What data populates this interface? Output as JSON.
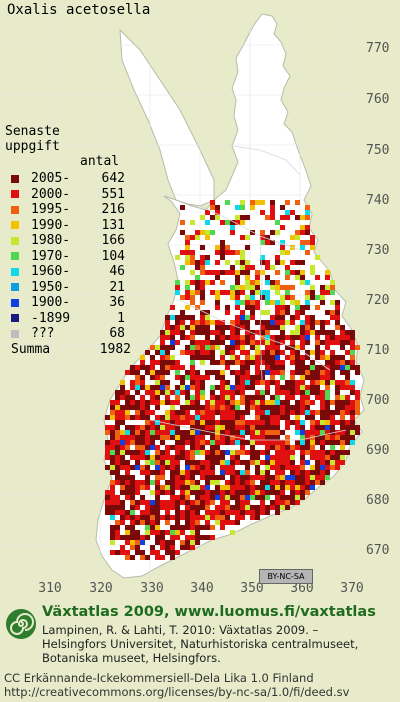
{
  "title": "Oxalis acetosella",
  "legend": {
    "heading_line1": "Senaste",
    "heading_line2": "uppgift",
    "count_header": "antal",
    "items": [
      {
        "label": "2005-",
        "count": "642",
        "color": "#7a0a0a"
      },
      {
        "label": "2000-",
        "count": "551",
        "color": "#e01010"
      },
      {
        "label": "1995-",
        "count": "216",
        "color": "#f06010"
      },
      {
        "label": "1990-",
        "count": "131",
        "color": "#f2c000"
      },
      {
        "label": "1980-",
        "count": "166",
        "color": "#c8e830"
      },
      {
        "label": "1970-",
        "count": "104",
        "color": "#50d850"
      },
      {
        "label": "1960-",
        "count": "46",
        "color": "#10d8e8"
      },
      {
        "label": "1950-",
        "count": "21",
        "color": "#10a0e0"
      },
      {
        "label": "1900-",
        "count": "36",
        "color": "#1040e0"
      },
      {
        "label": "-1899",
        "count": "1",
        "color": "#1a1a80"
      },
      {
        "label": "???",
        "count": "68",
        "color": "#bdbdbd"
      }
    ],
    "sum_label": "Summa",
    "sum_value": "1982"
  },
  "axes": {
    "y_ticks": [
      "770",
      "760",
      "750",
      "740",
      "730",
      "720",
      "710",
      "700",
      "690",
      "680",
      "670"
    ],
    "x_ticks": [
      "310",
      "320",
      "330",
      "340",
      "350",
      "360",
      "370"
    ]
  },
  "cc_badge": "BY-NC-SA",
  "footer": {
    "brand": "Växtatlas 2009, www.luomus.fi/vaxtatlas",
    "citation_lines": [
      "Lampinen, R. & Lahti, T. 2010: Växtatlas 2009. –",
      "Helsingfors Universitet, Naturhistoriska centralmuseet,",
      "Botaniska museet, Helsingfors."
    ],
    "license_lines": [
      "CC Erkännande-Ickekommersiell-Dela Lika 1.0 Finland",
      "http://creativecommons.org/licenses/by-nc-sa/1.0/fi/deed.sv"
    ]
  },
  "colors": {
    "background": "#e7ebc9",
    "land": "#ffffff",
    "brand": "#1f6b1f"
  }
}
